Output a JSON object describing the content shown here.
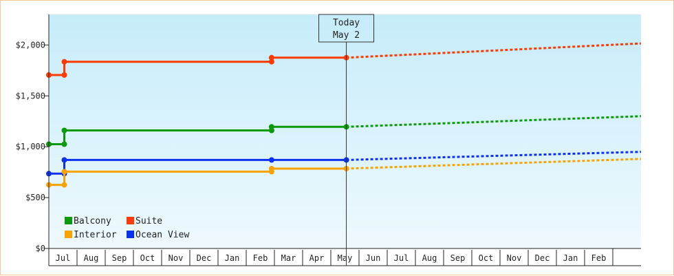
{
  "chart_data": {
    "type": "line",
    "subtype": "step-price-history-with-forecast",
    "today_label": [
      "Today",
      "May 2"
    ],
    "y_ticks": [
      "$0",
      "$500",
      "$1,000",
      "$1,500",
      "$2,000"
    ],
    "y_tick_values": [
      0,
      500,
      1000,
      1500,
      2000
    ],
    "ylim": [
      0,
      2300
    ],
    "x_tick_labels": [
      "Jul",
      "Aug",
      "Sep",
      "Oct",
      "Nov",
      "Dec",
      "Jan",
      "Feb",
      "Mar",
      "Apr",
      "May",
      "Jun",
      "Jul",
      "Aug",
      "Sep",
      "Oct",
      "Nov",
      "Dec",
      "Jan",
      "Feb"
    ],
    "x_month_index_range": [
      -0.5,
      20.5
    ],
    "today_index": 10.05,
    "grid": false,
    "legend_placement": "bottom-left",
    "colors": {
      "background_top": "#c6ecfa",
      "background_bottom": "#eef9fd",
      "frame_border": "#f0c89a"
    },
    "series": [
      {
        "name": "Suite",
        "color": "#ff3a00",
        "history": [
          [
            -0.5,
            1705
          ],
          [
            0.05,
            1705
          ],
          [
            0.05,
            1835
          ],
          [
            7.4,
            1835
          ],
          [
            7.4,
            1875
          ],
          [
            10.05,
            1875
          ]
        ],
        "markers": [
          [
            -0.5,
            1705
          ],
          [
            0.05,
            1705
          ],
          [
            0.05,
            1835
          ],
          [
            7.4,
            1835
          ],
          [
            7.4,
            1875
          ],
          [
            10.05,
            1875
          ]
        ],
        "forecast": [
          [
            10.05,
            1875
          ],
          [
            20.5,
            2015
          ]
        ]
      },
      {
        "name": "Balcony",
        "color": "#0a9a0a",
        "history": [
          [
            -0.5,
            1025
          ],
          [
            0.05,
            1025
          ],
          [
            0.05,
            1160
          ],
          [
            7.4,
            1160
          ],
          [
            7.4,
            1195
          ],
          [
            10.05,
            1195
          ]
        ],
        "markers": [
          [
            -0.5,
            1025
          ],
          [
            0.05,
            1025
          ],
          [
            0.05,
            1160
          ],
          [
            7.4,
            1160
          ],
          [
            7.4,
            1195
          ],
          [
            10.05,
            1195
          ]
        ],
        "forecast": [
          [
            10.05,
            1195
          ],
          [
            20.5,
            1300
          ]
        ]
      },
      {
        "name": "Ocean View",
        "color": "#0a30f0",
        "history": [
          [
            -0.5,
            735
          ],
          [
            0.05,
            735
          ],
          [
            0.05,
            870
          ],
          [
            7.4,
            870
          ],
          [
            10.05,
            870
          ]
        ],
        "markers": [
          [
            -0.5,
            735
          ],
          [
            0.05,
            735
          ],
          [
            0.05,
            870
          ],
          [
            7.4,
            870
          ],
          [
            10.05,
            870
          ]
        ],
        "forecast": [
          [
            10.05,
            870
          ],
          [
            20.5,
            950
          ]
        ]
      },
      {
        "name": "Interior",
        "color": "#f8a300",
        "history": [
          [
            -0.5,
            625
          ],
          [
            0.05,
            625
          ],
          [
            0.05,
            755
          ],
          [
            7.4,
            755
          ],
          [
            7.4,
            785
          ],
          [
            10.05,
            785
          ]
        ],
        "markers": [
          [
            -0.5,
            625
          ],
          [
            0.05,
            625
          ],
          [
            0.05,
            755
          ],
          [
            7.4,
            755
          ],
          [
            7.4,
            785
          ],
          [
            10.05,
            785
          ]
        ],
        "forecast": [
          [
            10.05,
            785
          ],
          [
            20.5,
            880
          ]
        ]
      }
    ],
    "legend": [
      {
        "name": "Balcony",
        "color": "#0a9a0a"
      },
      {
        "name": "Suite",
        "color": "#ff3a00"
      },
      {
        "name": "Interior",
        "color": "#f8a300"
      },
      {
        "name": "Ocean View",
        "color": "#0a30f0"
      }
    ]
  }
}
